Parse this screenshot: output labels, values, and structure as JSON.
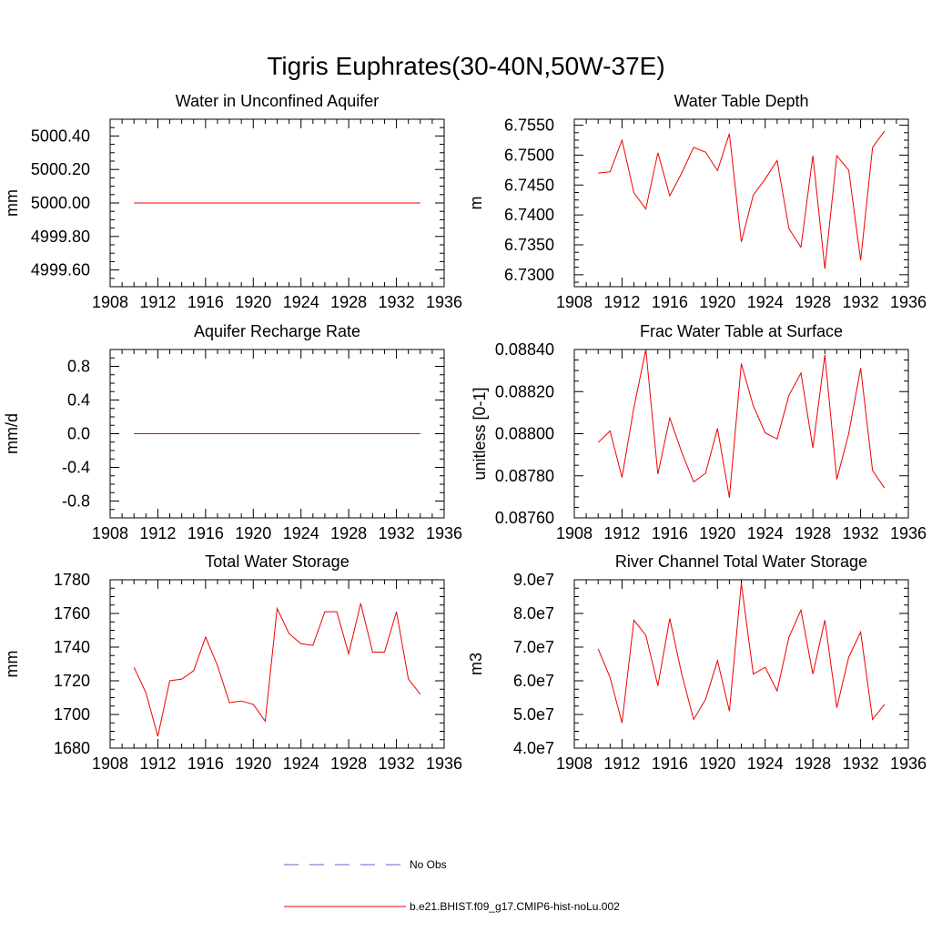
{
  "figure": {
    "title": "Tigris Euphrates(30-40N,50W-37E)"
  },
  "legend": {
    "position": "bottom-center",
    "entries": [
      {
        "label": "No Obs",
        "color": "#6666cc",
        "style": "dashed"
      },
      {
        "label": "b.e21.BHIST.f09_g17.CMIP6-hist-noLu.002",
        "color": "#ee0000",
        "style": "solid"
      }
    ]
  },
  "chart_data": [
    {
      "type": "line",
      "title": "Water in Unconfined Aquifer",
      "ylabel": "mm",
      "xlim": [
        1908,
        1936
      ],
      "xticks": [
        "1908",
        "1912",
        "1916",
        "1920",
        "1924",
        "1928",
        "1932",
        "1936"
      ],
      "ylim": [
        4999.5,
        5000.5
      ],
      "yticks": [
        "4999.60",
        "4999.80",
        "5000.00",
        "5000.20",
        "5000.40"
      ],
      "series": [
        {
          "color": "#ee0000",
          "x": [
            1910,
            1911,
            1912,
            1913,
            1914,
            1915,
            1916,
            1917,
            1918,
            1919,
            1920,
            1921,
            1922,
            1923,
            1924,
            1925,
            1926,
            1927,
            1928,
            1929,
            1930,
            1931,
            1932,
            1933,
            1934
          ],
          "y": [
            5000,
            5000,
            5000,
            5000,
            5000,
            5000,
            5000,
            5000,
            5000,
            5000,
            5000,
            5000,
            5000,
            5000,
            5000,
            5000,
            5000,
            5000,
            5000,
            5000,
            5000,
            5000,
            5000,
            5000,
            5000
          ]
        }
      ]
    },
    {
      "type": "line",
      "title": "Water Table Depth",
      "ylabel": "m",
      "xlim": [
        1908,
        1936
      ],
      "xticks": [
        "1908",
        "1912",
        "1916",
        "1920",
        "1924",
        "1928",
        "1932",
        "1936"
      ],
      "ylim": [
        6.728,
        6.756
      ],
      "yticks": [
        "6.7300",
        "6.7350",
        "6.7400",
        "6.7450",
        "6.7500",
        "6.7550"
      ],
      "series": [
        {
          "color": "#ee0000",
          "x": [
            1910,
            1911,
            1912,
            1913,
            1914,
            1915,
            1916,
            1917,
            1918,
            1919,
            1920,
            1921,
            1922,
            1923,
            1924,
            1925,
            1926,
            1927,
            1928,
            1929,
            1930,
            1931,
            1932,
            1933,
            1934
          ],
          "y": [
            6.747,
            6.7472,
            6.7525,
            6.7437,
            6.741,
            6.7504,
            6.7432,
            6.747,
            6.7513,
            6.7505,
            6.7474,
            6.7536,
            6.7355,
            6.7433,
            6.746,
            6.7491,
            6.7377,
            6.7346,
            6.7499,
            6.731,
            6.7499,
            6.7475,
            6.7324,
            6.7513,
            6.754
          ]
        }
      ]
    },
    {
      "type": "line",
      "title": "Aquifer Recharge Rate",
      "ylabel": "mm/d",
      "xlim": [
        1908,
        1936
      ],
      "xticks": [
        "1908",
        "1912",
        "1916",
        "1920",
        "1924",
        "1928",
        "1932",
        "1936"
      ],
      "ylim": [
        -1.0,
        1.0
      ],
      "yticks": [
        "-0.8",
        "-0.4",
        "0.0",
        "0.4",
        "0.8"
      ],
      "series": [
        {
          "color": "#ee0000",
          "x": [
            1910,
            1911,
            1912,
            1913,
            1914,
            1915,
            1916,
            1917,
            1918,
            1919,
            1920,
            1921,
            1922,
            1923,
            1924,
            1925,
            1926,
            1927,
            1928,
            1929,
            1930,
            1931,
            1932,
            1933,
            1934
          ],
          "y": [
            0,
            0,
            0,
            0,
            0,
            0,
            0,
            0,
            0,
            0,
            0,
            0,
            0,
            0,
            0,
            0,
            0,
            0,
            0,
            0,
            0,
            0,
            0,
            0,
            0
          ]
        }
      ]
    },
    {
      "type": "line",
      "title": "Frac Water Table at Surface",
      "ylabel": "unitless [0-1]",
      "xlim": [
        1908,
        1936
      ],
      "xticks": [
        "1908",
        "1912",
        "1916",
        "1920",
        "1924",
        "1928",
        "1932",
        "1936"
      ],
      "ylim": [
        0.0876,
        0.0884
      ],
      "yticks": [
        "0.08760",
        "0.08780",
        "0.08800",
        "0.08820",
        "0.08840"
      ],
      "series": [
        {
          "color": "#ee0000",
          "x": [
            1910,
            1911,
            1912,
            1913,
            1914,
            1915,
            1916,
            1917,
            1918,
            1919,
            1920,
            1921,
            1922,
            1923,
            1924,
            1925,
            1926,
            1927,
            1928,
            1929,
            1930,
            1931,
            1932,
            1933,
            1934
          ],
          "y": [
            0.087958,
            0.088013,
            0.087792,
            0.088125,
            0.0884,
            0.087808,
            0.088075,
            0.087912,
            0.087771,
            0.087812,
            0.088025,
            0.087696,
            0.088333,
            0.088133,
            0.088004,
            0.087975,
            0.088183,
            0.088288,
            0.087933,
            0.088375,
            0.087783,
            0.088,
            0.088312,
            0.087825,
            0.087742
          ]
        }
      ]
    },
    {
      "type": "line",
      "title": "Total Water Storage",
      "ylabel": "mm",
      "xlim": [
        1908,
        1936
      ],
      "xticks": [
        "1908",
        "1912",
        "1916",
        "1920",
        "1924",
        "1928",
        "1932",
        "1936"
      ],
      "ylim": [
        1680,
        1780
      ],
      "yticks": [
        "1680",
        "1700",
        "1720",
        "1740",
        "1760",
        "1780"
      ],
      "series": [
        {
          "color": "#ee0000",
          "x": [
            1910,
            1911,
            1912,
            1913,
            1914,
            1915,
            1916,
            1917,
            1918,
            1919,
            1920,
            1921,
            1922,
            1923,
            1924,
            1925,
            1926,
            1927,
            1928,
            1929,
            1930,
            1931,
            1932,
            1933,
            1934
          ],
          "y": [
            1728,
            1713,
            1687,
            1720,
            1721,
            1726,
            1746,
            1729,
            1707,
            1708,
            1706,
            1696,
            1763,
            1748,
            1742,
            1741,
            1761,
            1761,
            1736,
            1766,
            1737,
            1737,
            1761,
            1721,
            1712
          ]
        }
      ]
    },
    {
      "type": "line",
      "title": "River Channel Total Water Storage",
      "ylabel": "m3",
      "xlim": [
        1908,
        1936
      ],
      "xticks": [
        "1908",
        "1912",
        "1916",
        "1920",
        "1924",
        "1928",
        "1932",
        "1936"
      ],
      "ylim": [
        40000000,
        90000000
      ],
      "yticks": [
        "4.0e7",
        "5.0e7",
        "6.0e7",
        "7.0e7",
        "8.0e7",
        "9.0e7"
      ],
      "series": [
        {
          "color": "#ee0000",
          "x": [
            1910,
            1911,
            1912,
            1913,
            1914,
            1915,
            1916,
            1917,
            1918,
            1919,
            1920,
            1921,
            1922,
            1923,
            1924,
            1925,
            1926,
            1927,
            1928,
            1929,
            1930,
            1931,
            1932,
            1933,
            1934
          ],
          "y": [
            69500000,
            61000000,
            47500000,
            78000000,
            73500000,
            58500000,
            78500000,
            62000000,
            48500000,
            54500000,
            66000000,
            51000000,
            89000000,
            62000000,
            64000000,
            57000000,
            73000000,
            81000000,
            62000000,
            78000000,
            52000000,
            67000000,
            74500000,
            48500000,
            53000000
          ]
        }
      ]
    }
  ]
}
